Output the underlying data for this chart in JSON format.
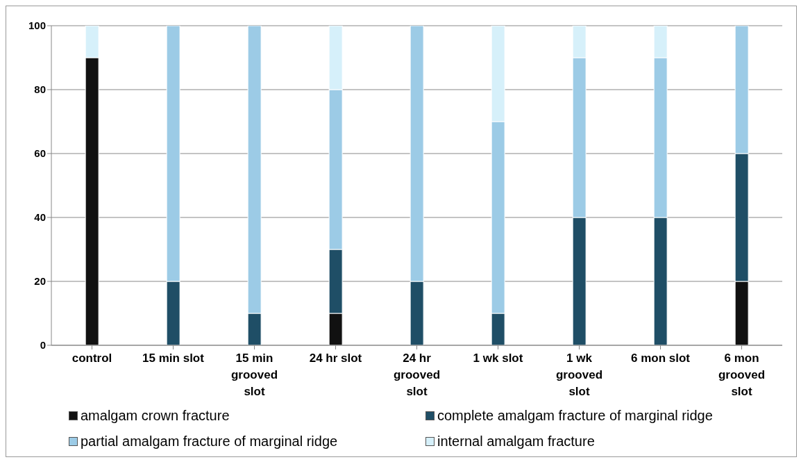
{
  "chart_data": {
    "type": "bar",
    "stacked": true,
    "categories": [
      "control",
      "15 min slot",
      "15 min grooved slot",
      "24 hr slot",
      "24 hr grooved slot",
      "1 wk slot",
      "1 wk grooved slot",
      "6 mon slot",
      "6 mon grooved slot"
    ],
    "series": [
      {
        "name": "amalgam crown fracture",
        "color": "#111111",
        "values": [
          90,
          0,
          0,
          10,
          0,
          0,
          0,
          0,
          20
        ]
      },
      {
        "name": "complete amalgam fracture of marginal ridge",
        "color": "#1f4e66",
        "values": [
          0,
          20,
          10,
          20,
          20,
          10,
          40,
          40,
          40
        ]
      },
      {
        "name": "partial amalgam fracture of marginal ridge",
        "color": "#9ccbe6",
        "values": [
          0,
          80,
          90,
          50,
          80,
          60,
          50,
          50,
          40
        ]
      },
      {
        "name": "internal amalgam fracture",
        "color": "#d6f0fa",
        "values": [
          10,
          0,
          0,
          20,
          0,
          30,
          10,
          10,
          0
        ]
      }
    ],
    "ylim": [
      0,
      100
    ],
    "yticks": [
      0,
      20,
      40,
      60,
      80,
      100
    ],
    "grid": "y",
    "legend": "bottom"
  }
}
